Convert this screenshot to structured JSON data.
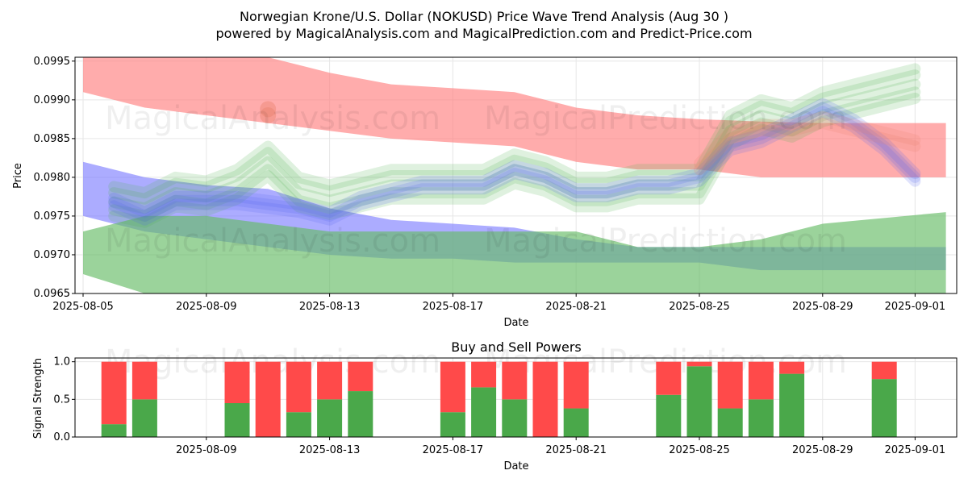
{
  "header": {
    "title_line1": "Norwegian Krone/U.S. Dollar (NOKUSD) Price Wave Trend Analysis (Aug 30 )",
    "title_line2": "powered by MagicalAnalysis.com and MagicalPrediction.com and Predict-Price.com"
  },
  "watermarks": [
    "MagicalAnalysis.com",
    "MagicalPrediction.com"
  ],
  "colors": {
    "red_band": "#ff8080",
    "blue_band": "#8080ff",
    "green_band": "#66bb66",
    "buy_bar": "#4aa84a",
    "sell_bar": "#ff4a4a",
    "grid": "#e6e6e6"
  },
  "chart_data": [
    {
      "type": "area",
      "title": "",
      "xlabel": "Date",
      "ylabel": "Price",
      "x_range": [
        "2025-08-05",
        "2025-09-02"
      ],
      "ylim": [
        0.0965,
        0.09955
      ],
      "x_tick_labels": [
        "2025-08-05",
        "2025-08-09",
        "2025-08-13",
        "2025-08-17",
        "2025-08-21",
        "2025-08-25",
        "2025-08-29",
        "2025-09-01"
      ],
      "y_tick_labels": [
        "0.0965",
        "0.0970",
        "0.0975",
        "0.0980",
        "0.0985",
        "0.0990",
        "0.0995"
      ],
      "grid": true,
      "bands": [
        {
          "color": "red",
          "x": [
            "2025-08-05",
            "2025-08-07",
            "2025-08-09",
            "2025-08-11",
            "2025-08-13",
            "2025-08-15",
            "2025-08-17",
            "2025-08-19",
            "2025-08-21",
            "2025-08-23",
            "2025-08-25",
            "2025-08-27",
            "2025-08-29",
            "2025-09-02"
          ],
          "upper": [
            0.09965,
            0.09962,
            0.0996,
            0.09955,
            0.09935,
            0.0992,
            0.09915,
            0.0991,
            0.0989,
            0.0988,
            0.09875,
            0.09872,
            0.0987,
            0.0987
          ],
          "lower": [
            0.0991,
            0.0989,
            0.0988,
            0.0987,
            0.0986,
            0.0985,
            0.09845,
            0.0984,
            0.0982,
            0.0981,
            0.0981,
            0.098,
            0.098,
            0.098
          ]
        },
        {
          "color": "blue",
          "x": [
            "2025-08-05",
            "2025-08-07",
            "2025-08-09",
            "2025-08-11",
            "2025-08-13",
            "2025-08-15",
            "2025-08-17",
            "2025-08-19",
            "2025-08-21",
            "2025-08-23",
            "2025-08-25",
            "2025-08-27",
            "2025-08-29",
            "2025-09-02"
          ],
          "upper": [
            0.0982,
            0.098,
            0.0979,
            0.09785,
            0.0976,
            0.09745,
            0.0974,
            0.09735,
            0.0972,
            0.0971,
            0.0971,
            0.0971,
            0.0971,
            0.0971
          ],
          "lower": [
            0.0975,
            0.0973,
            0.0972,
            0.0971,
            0.097,
            0.09695,
            0.09695,
            0.0969,
            0.0969,
            0.0969,
            0.0969,
            0.0968,
            0.0968,
            0.0968
          ]
        },
        {
          "color": "green",
          "x": [
            "2025-08-05",
            "2025-08-07",
            "2025-08-09",
            "2025-08-11",
            "2025-08-13",
            "2025-08-15",
            "2025-08-17",
            "2025-08-19",
            "2025-08-21",
            "2025-08-23",
            "2025-08-25",
            "2025-08-27",
            "2025-08-29",
            "2025-09-02"
          ],
          "upper": [
            0.0973,
            0.0975,
            0.0975,
            0.0974,
            0.0973,
            0.0973,
            0.0973,
            0.0973,
            0.0973,
            0.0971,
            0.0971,
            0.0972,
            0.0974,
            0.09755
          ],
          "lower": [
            0.09675,
            0.0965,
            0.0965,
            0.0965,
            0.0965,
            0.0965,
            0.0965,
            0.0965,
            0.0965,
            0.0965,
            0.0965,
            0.0965,
            0.0965,
            0.0965
          ]
        }
      ],
      "wave_lines": {
        "x": [
          "2025-08-06",
          "2025-08-07",
          "2025-08-08",
          "2025-08-09",
          "2025-08-10",
          "2025-08-11",
          "2025-08-12",
          "2025-08-13",
          "2025-08-14",
          "2025-08-15",
          "2025-08-16",
          "2025-08-17",
          "2025-08-18",
          "2025-08-19",
          "2025-08-20",
          "2025-08-21",
          "2025-08-22",
          "2025-08-23",
          "2025-08-24",
          "2025-08-25",
          "2025-08-26",
          "2025-08-27",
          "2025-08-28",
          "2025-08-29",
          "2025-08-30",
          "2025-08-31",
          "2025-09-01"
        ],
        "green_center": [
          0.09768,
          0.0976,
          0.0978,
          0.09775,
          0.0979,
          0.0982,
          0.0978,
          0.0977,
          0.0978,
          0.0979,
          0.0979,
          0.0979,
          0.0979,
          0.0981,
          0.098,
          0.0978,
          0.0978,
          0.0979,
          0.0979,
          0.0979,
          0.0986,
          0.0988,
          0.0987,
          0.0989,
          0.099,
          0.0991,
          0.0992
        ],
        "blue_center": [
          0.09768,
          0.0975,
          0.0977,
          0.0977,
          0.0977,
          0.09765,
          0.0976,
          0.0975,
          0.0977,
          0.0978,
          0.0979,
          0.0979,
          0.0979,
          0.0981,
          0.098,
          0.0978,
          0.0978,
          0.0979,
          0.0979,
          0.098,
          0.0984,
          0.0985,
          0.0987,
          0.0989,
          0.0987,
          0.0984,
          0.098
        ],
        "red_center": [
          null,
          null,
          null,
          null,
          null,
          0.0988,
          null,
          null,
          null,
          null,
          null,
          null,
          null,
          null,
          null,
          null,
          null,
          null,
          null,
          0.0981,
          0.0985,
          0.0986,
          0.0986,
          0.0987,
          0.0986,
          0.0985,
          0.0984
        ]
      }
    },
    {
      "type": "bar",
      "title": "Buy and Sell Powers",
      "xlabel": "Date",
      "ylabel": "Signal Strength",
      "ylim": [
        0,
        1.05
      ],
      "x_range": [
        "2025-08-05",
        "2025-09-02"
      ],
      "x_tick_labels": [
        "2025-08-09",
        "2025-08-13",
        "2025-08-17",
        "2025-08-21",
        "2025-08-25",
        "2025-08-29",
        "2025-09-01"
      ],
      "y_tick_labels": [
        "0.0",
        "0.5",
        "1.0"
      ],
      "grid": true,
      "series": [
        {
          "name": "",
          "dates": [
            "2025-08-06",
            "2025-08-07",
            "2025-08-10",
            "2025-08-11",
            "2025-08-12",
            "2025-08-13",
            "2025-08-14",
            "2025-08-17",
            "2025-08-18",
            "2025-08-19",
            "2025-08-20",
            "2025-08-21",
            "2025-08-24",
            "2025-08-25",
            "2025-08-26",
            "2025-08-27",
            "2025-08-28",
            "2025-08-31"
          ],
          "buy": [
            0.17,
            0.5,
            0.45,
            0.0,
            0.33,
            0.5,
            0.61,
            0.33,
            0.66,
            0.5,
            0.0,
            0.38,
            0.56,
            0.94,
            0.38,
            0.5,
            0.84,
            0.77
          ]
        }
      ]
    }
  ]
}
